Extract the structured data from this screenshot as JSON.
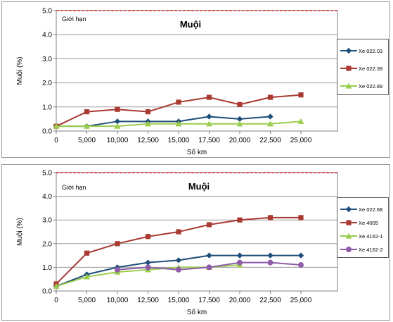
{
  "chart_data": [
    {
      "type": "line",
      "title": "Muội",
      "annotation": "Giới hạn",
      "xlabel": "Số km",
      "ylabel": "Muội (%)",
      "categories": [
        "0",
        "5,000",
        "10,000",
        "12,500",
        "15,000",
        "17,500",
        "20,000",
        "22,500",
        "25,000"
      ],
      "y_ticks": [
        "0.0",
        "1.0",
        "2.0",
        "3.0",
        "4.0",
        "5.0"
      ],
      "ylim": [
        0,
        5
      ],
      "limit_value": 5.0,
      "limit_color": "#cc2222",
      "grid": true,
      "legend_position": "right",
      "series": [
        {
          "name": "Xe 022.03",
          "color": "#1f4e79",
          "marker": "diamond",
          "values": [
            0.2,
            0.2,
            0.4,
            0.4,
            0.4,
            0.6,
            0.5,
            0.6,
            null
          ]
        },
        {
          "name": "Xe 022.39",
          "color": "#a83a32",
          "marker": "square",
          "values": [
            0.2,
            0.8,
            0.9,
            0.8,
            1.2,
            1.4,
            1.1,
            1.4,
            1.5
          ]
        },
        {
          "name": "Xe 022.89",
          "color": "#9acd4c",
          "marker": "triangle",
          "values": [
            0.2,
            0.2,
            0.2,
            0.3,
            0.3,
            0.3,
            0.3,
            0.3,
            0.4
          ]
        }
      ]
    },
    {
      "type": "line",
      "title": "Muội",
      "annotation": "Giới hạn",
      "xlabel": "Số km",
      "ylabel": "Muội (%)",
      "categories": [
        "0",
        "5,000",
        "10,000",
        "12,500",
        "15,000",
        "17,500",
        "20,000",
        "22,500",
        "25,000"
      ],
      "y_ticks": [
        "0.0",
        "1.0",
        "2.0",
        "3.0",
        "4.0",
        "5.0"
      ],
      "ylim": [
        0,
        5
      ],
      "limit_value": 5.0,
      "limit_color": "#cc2222",
      "grid": true,
      "legend_position": "right",
      "series": [
        {
          "name": "Xe 022.68",
          "color": "#1f4e79",
          "marker": "diamond",
          "values": [
            0.2,
            0.7,
            1.0,
            1.2,
            1.3,
            1.5,
            1.5,
            1.5,
            1.5
          ]
        },
        {
          "name": "Xe 4005",
          "color": "#a83a32",
          "marker": "square",
          "values": [
            0.3,
            1.6,
            2.0,
            2.3,
            2.5,
            2.8,
            3.0,
            3.1,
            3.1
          ]
        },
        {
          "name": "Xe 4162-1",
          "color": "#9acd4c",
          "marker": "triangle",
          "values": [
            0.2,
            0.6,
            0.8,
            0.9,
            1.0,
            1.0,
            1.1,
            null,
            null
          ]
        },
        {
          "name": "Xe 4162-2",
          "color": "#8e5ca8",
          "marker": "circle",
          "values": [
            null,
            null,
            0.9,
            1.0,
            0.9,
            1.0,
            1.2,
            1.2,
            1.1
          ]
        }
      ]
    }
  ]
}
